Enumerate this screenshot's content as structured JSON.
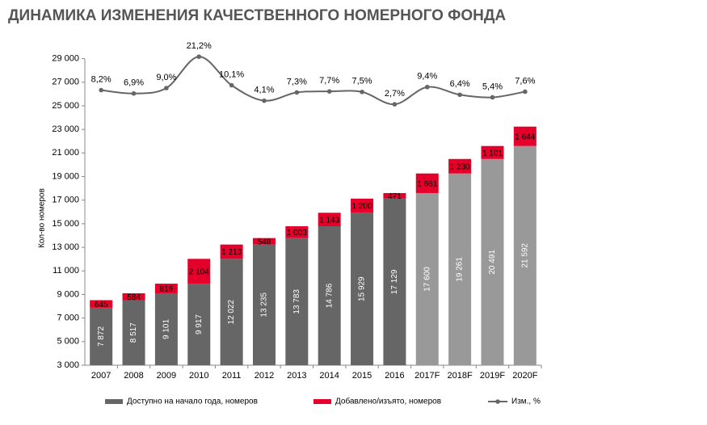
{
  "chart_data": {
    "type": "stacked_bar_line",
    "title": "ДИНАМИКА ИЗМЕНЕНИЯ КАЧЕСТВЕННОГО НОМЕРНОГО ФОНДА",
    "y_label": "Кол-во номеров",
    "categories": [
      "2007",
      "2008",
      "2009",
      "2010",
      "2011",
      "2012",
      "2013",
      "2014",
      "2015",
      "2016",
      "2017F",
      "2018F",
      "2019F",
      "2020F"
    ],
    "series": [
      {
        "name": "Доступно на начало года, номеров",
        "color": "#666666",
        "colors": [
          "#666666",
          "#666666",
          "#666666",
          "#666666",
          "#666666",
          "#666666",
          "#666666",
          "#666666",
          "#666666",
          "#666666",
          "#999999",
          "#999999",
          "#999999",
          "#999999"
        ],
        "values": [
          7872,
          8517,
          9101,
          9917,
          12022,
          13235,
          13783,
          14786,
          15929,
          17129,
          17600,
          19261,
          20491,
          21592
        ],
        "value_labels": [
          "7 872",
          "8 517",
          "9 101",
          "9 917",
          "12 022",
          "13 235",
          "13 783",
          "14 786",
          "15 929",
          "17 129",
          "17 600",
          "19 261",
          "20 491",
          "21 592"
        ]
      },
      {
        "name": "Добавлено/изъято, номеров",
        "color": "#e4002b",
        "values": [
          645,
          584,
          816,
          2104,
          1213,
          548,
          1003,
          1143,
          1200,
          471,
          1661,
          1230,
          1101,
          1644
        ],
        "value_labels": [
          "645",
          "584",
          "816",
          "2 104",
          "1 213",
          "548",
          "1 003",
          "1 143",
          "1 200",
          "471",
          "1 661",
          "1 230",
          "1 101",
          "1 644"
        ]
      },
      {
        "name": "Изм., %",
        "color": "#666666",
        "axis": "y2",
        "values": [
          8.2,
          6.9,
          9,
          21.2,
          10.1,
          4.1,
          7.3,
          7.7,
          7.5,
          2.7,
          9.4,
          6.4,
          5.4,
          7.6
        ],
        "value_labels": [
          "8,2%",
          "6,9%",
          "9,0%",
          "21,2%",
          "10,1%",
          "4,1%",
          "7,3%",
          "7,7%",
          "7,5%",
          "2,7%",
          "9,4%",
          "6,4%",
          "5,4%",
          "7,6%"
        ]
      }
    ],
    "ylim": [
      3000,
      30000
    ],
    "yticks": [
      {
        "value": 3000,
        "label": "3 000"
      },
      {
        "value": 5000,
        "label": "5 000"
      },
      {
        "value": 7000,
        "label": "7 000"
      },
      {
        "value": 9000,
        "label": "9 000"
      },
      {
        "value": 11000,
        "label": "11 000"
      },
      {
        "value": 13000,
        "label": "13 000"
      },
      {
        "value": 15000,
        "label": "15 000"
      },
      {
        "value": 17000,
        "label": "17 000"
      },
      {
        "value": 19000,
        "label": "19 000"
      },
      {
        "value": 21000,
        "label": "21 000"
      },
      {
        "value": 23000,
        "label": "23 000"
      },
      {
        "value": 25000,
        "label": "25 000"
      },
      {
        "value": 27000,
        "label": "27 000"
      },
      {
        "value": 29000,
        "label": "29 000"
      }
    ],
    "y2lim": [
      -98.6,
      25
    ],
    "grid": false
  }
}
